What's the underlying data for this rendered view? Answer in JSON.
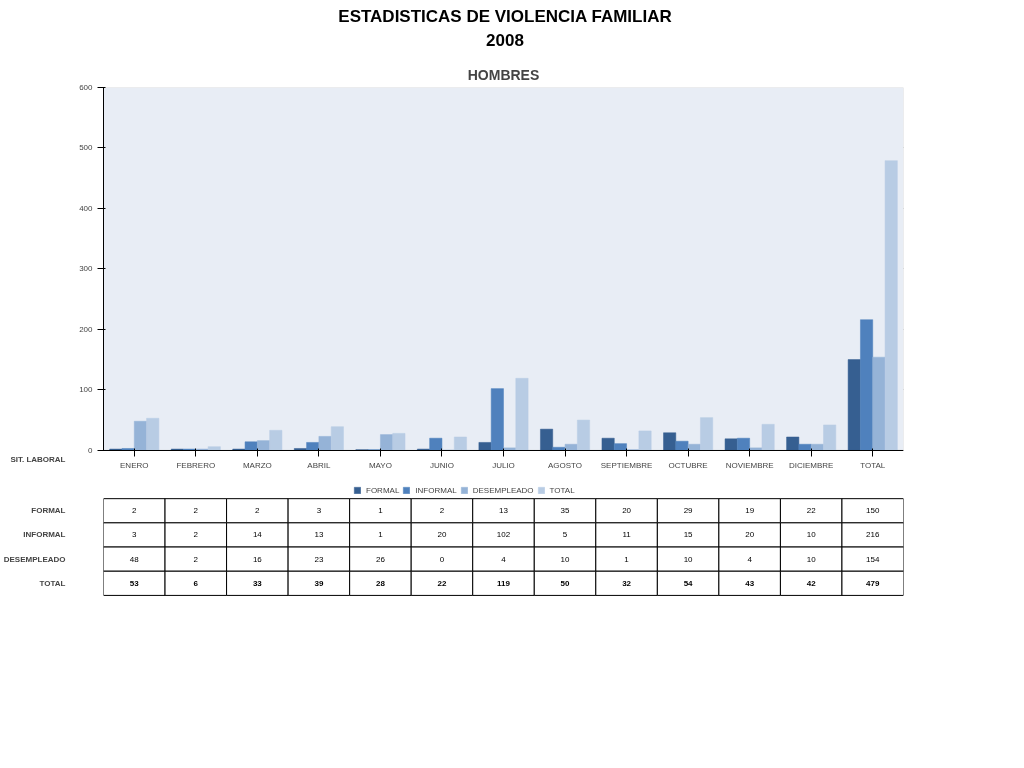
{
  "chart_data": {
    "type": "bar",
    "title": "ESTADISTICAS DE VIOLENCIA FAMILIAR\n2008",
    "subtitle": "HOMBRES",
    "categories": [
      "ENERO",
      "FEBRERO",
      "MARZO",
      "ABRIL",
      "MAYO",
      "JUNIO",
      "JULIO",
      "AGOSTO",
      "SEPTIEMBRE",
      "OCTUBRE",
      "NOVIEMBRE",
      "DICIEMBRE",
      "TOTAL"
    ],
    "series": [
      {
        "name": "FORMAL",
        "color": "#365f91",
        "values": [
          2,
          2,
          2,
          3,
          1,
          2,
          13,
          35,
          20,
          29,
          19,
          22,
          150
        ]
      },
      {
        "name": "INFORMAL",
        "color": "#4f81bd",
        "values": [
          3,
          2,
          14,
          13,
          1,
          20,
          102,
          5,
          11,
          15,
          20,
          10,
          216
        ]
      },
      {
        "name": "DESEMPLEADO",
        "color": "#95b3d7",
        "values": [
          48,
          2,
          16,
          23,
          26,
          0,
          4,
          10,
          1,
          10,
          4,
          10,
          154
        ]
      },
      {
        "name": "TOTAL",
        "color": "#b8cce4",
        "values": [
          53,
          6,
          33,
          39,
          28,
          22,
          119,
          50,
          32,
          54,
          43,
          42,
          479
        ]
      }
    ],
    "ylim": [
      0,
      600
    ],
    "yticks": [
      0,
      100,
      200,
      300,
      400,
      500,
      600
    ],
    "grid": "y",
    "legend": "bottom",
    "data_labels": true,
    "annotations": [
      "SIT. LABORAL"
    ]
  }
}
